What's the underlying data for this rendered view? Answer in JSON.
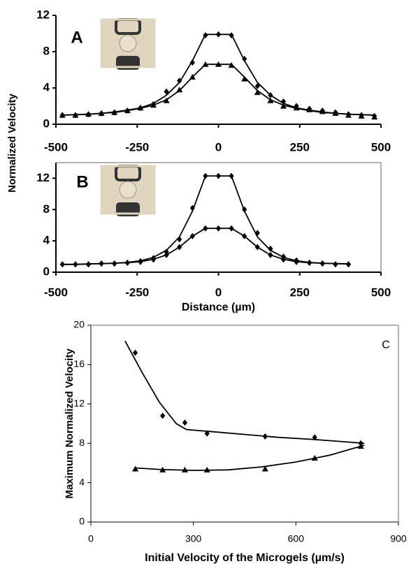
{
  "chart_data": [
    {
      "type": "scatter",
      "label": "A",
      "ylabel": "Normalized Velocity",
      "xlim": [
        -500,
        500
      ],
      "xticks": [
        -500,
        -250,
        0,
        250,
        500
      ],
      "ylim": [
        0,
        12
      ],
      "yticks": [
        0,
        4,
        8,
        12
      ],
      "series": [
        {
          "style": "diamond",
          "color": "#000000",
          "x": [
            -480,
            -440,
            -400,
            -360,
            -320,
            -280,
            -240,
            -200,
            -160,
            -120,
            -80,
            -40,
            0,
            40,
            80,
            120,
            160,
            200,
            240,
            280,
            320,
            360,
            400,
            440,
            480
          ],
          "values": [
            1.0,
            1.0,
            1.1,
            1.2,
            1.3,
            1.5,
            1.8,
            2.2,
            3.6,
            4.8,
            6.8,
            9.8,
            9.9,
            9.8,
            7.2,
            4.2,
            3.2,
            2.5,
            2.0,
            1.7,
            1.5,
            1.3,
            1.1,
            1.0,
            0.9
          ]
        },
        {
          "style": "triangle",
          "color": "#000000",
          "x": [
            -480,
            -440,
            -400,
            -360,
            -320,
            -280,
            -240,
            -200,
            -160,
            -120,
            -80,
            -40,
            0,
            40,
            80,
            120,
            160,
            200,
            240,
            280,
            320,
            360,
            400,
            440,
            480
          ],
          "values": [
            1.0,
            1.0,
            1.1,
            1.2,
            1.3,
            1.5,
            1.8,
            2.1,
            2.6,
            3.8,
            5.2,
            6.6,
            6.6,
            6.5,
            5.0,
            3.5,
            2.6,
            2.0,
            1.8,
            1.6,
            1.4,
            1.2,
            1.0,
            0.9,
            0.8
          ]
        },
        {
          "style": "line",
          "color": "#000000",
          "x": [
            -480,
            -440,
            -400,
            -360,
            -320,
            -280,
            -240,
            -200,
            -160,
            -120,
            -80,
            -40,
            0,
            40,
            80,
            120,
            160,
            200,
            240,
            280,
            320,
            360,
            400,
            440,
            480
          ],
          "values": [
            1.0,
            1.05,
            1.1,
            1.2,
            1.35,
            1.55,
            1.8,
            2.3,
            3.2,
            4.6,
            7.0,
            9.9,
            9.9,
            9.9,
            7.0,
            4.6,
            3.2,
            2.3,
            1.8,
            1.55,
            1.35,
            1.2,
            1.1,
            1.05,
            1.0
          ]
        },
        {
          "style": "line",
          "color": "#000000",
          "x": [
            -480,
            -440,
            -400,
            -360,
            -320,
            -280,
            -240,
            -200,
            -160,
            -120,
            -80,
            -40,
            0,
            40,
            80,
            120,
            160,
            200,
            240,
            280,
            320,
            360,
            400,
            440,
            480
          ],
          "values": [
            1.0,
            1.05,
            1.1,
            1.2,
            1.3,
            1.5,
            1.75,
            2.1,
            2.7,
            3.7,
            5.2,
            6.6,
            6.6,
            6.6,
            5.2,
            3.7,
            2.7,
            2.1,
            1.75,
            1.5,
            1.3,
            1.2,
            1.1,
            1.05,
            1.0
          ]
        }
      ]
    },
    {
      "type": "scatter",
      "label": "B",
      "xlabel": "Distance (µm)",
      "xlim": [
        -500,
        500
      ],
      "xticks": [
        -500,
        -250,
        0,
        250,
        500
      ],
      "ylim": [
        0,
        14
      ],
      "yticks": [
        0,
        4,
        8,
        12
      ],
      "series": [
        {
          "style": "diamond",
          "color": "#000000",
          "x": [
            -480,
            -440,
            -400,
            -360,
            -320,
            -280,
            -240,
            -200,
            -160,
            -120,
            -80,
            -40,
            0,
            40,
            80,
            120,
            160,
            200,
            240,
            280,
            320,
            360,
            400
          ],
          "values": [
            1.0,
            1.0,
            1.0,
            1.1,
            1.1,
            1.2,
            1.4,
            1.8,
            2.6,
            4.2,
            8.2,
            12.3,
            12.3,
            12.3,
            8.0,
            5.0,
            3.0,
            2.0,
            1.5,
            1.2,
            1.1,
            1.0,
            1.0
          ]
        },
        {
          "style": "diamond",
          "color": "#000000",
          "x": [
            -480,
            -440,
            -400,
            -360,
            -320,
            -280,
            -240,
            -200,
            -160,
            -120,
            -80,
            -40,
            0,
            40,
            80,
            120,
            160,
            200,
            240,
            280,
            320,
            360,
            400
          ],
          "values": [
            1.0,
            1.0,
            1.0,
            1.1,
            1.1,
            1.2,
            1.3,
            1.6,
            2.2,
            3.2,
            4.6,
            5.6,
            5.6,
            5.6,
            4.6,
            3.2,
            2.2,
            1.6,
            1.3,
            1.2,
            1.1,
            1.0,
            1.0
          ]
        },
        {
          "style": "line",
          "color": "#000000",
          "x": [
            -480,
            -440,
            -400,
            -360,
            -320,
            -280,
            -240,
            -200,
            -160,
            -120,
            -80,
            -40,
            0,
            40,
            80,
            120,
            160,
            200,
            240,
            280,
            320,
            360,
            400
          ],
          "values": [
            1.0,
            1.0,
            1.05,
            1.1,
            1.15,
            1.25,
            1.45,
            1.9,
            2.8,
            4.5,
            7.8,
            12.3,
            12.3,
            12.3,
            7.8,
            4.5,
            2.8,
            1.9,
            1.45,
            1.25,
            1.15,
            1.1,
            1.05
          ]
        },
        {
          "style": "line",
          "color": "#000000",
          "x": [
            -480,
            -440,
            -400,
            -360,
            -320,
            -280,
            -240,
            -200,
            -160,
            -120,
            -80,
            -40,
            0,
            40,
            80,
            120,
            160,
            200,
            240,
            280,
            320,
            360,
            400
          ],
          "values": [
            1.0,
            1.0,
            1.05,
            1.1,
            1.15,
            1.2,
            1.35,
            1.65,
            2.2,
            3.2,
            4.6,
            5.6,
            5.6,
            5.6,
            4.6,
            3.2,
            2.2,
            1.65,
            1.35,
            1.2,
            1.15,
            1.1,
            1.05
          ]
        }
      ]
    },
    {
      "type": "scatter",
      "label": "C",
      "ylabel": "Maximum Normalized Velocity",
      "xlabel": "Initial Velocity of the Microgels (µm/s)",
      "xlim": [
        0,
        900
      ],
      "xticks": [
        0,
        300,
        600,
        900
      ],
      "ylim": [
        0,
        20
      ],
      "yticks": [
        0,
        4,
        8,
        12,
        16,
        20
      ],
      "series": [
        {
          "style": "diamond",
          "color": "#000000",
          "x": [
            130,
            210,
            275,
            340,
            510,
            655,
            790
          ],
          "values": [
            17.2,
            10.8,
            10.1,
            9.0,
            8.7,
            8.6,
            8.0
          ]
        },
        {
          "style": "triangle",
          "color": "#000000",
          "x": [
            130,
            210,
            275,
            340,
            510,
            655,
            790
          ],
          "values": [
            5.4,
            5.3,
            5.3,
            5.3,
            5.4,
            6.5,
            7.7
          ]
        },
        {
          "style": "line",
          "color": "#000000",
          "x": [
            100,
            150,
            200,
            250,
            280,
            350,
            450,
            550,
            650,
            800
          ],
          "values": [
            18.4,
            15.2,
            12.2,
            10.0,
            9.4,
            9.2,
            8.9,
            8.6,
            8.4,
            8.0
          ]
        },
        {
          "style": "line",
          "color": "#000000",
          "x": [
            130,
            200,
            300,
            400,
            500,
            600,
            700,
            800
          ],
          "values": [
            5.5,
            5.35,
            5.25,
            5.3,
            5.6,
            6.1,
            6.8,
            7.8
          ]
        }
      ]
    }
  ]
}
